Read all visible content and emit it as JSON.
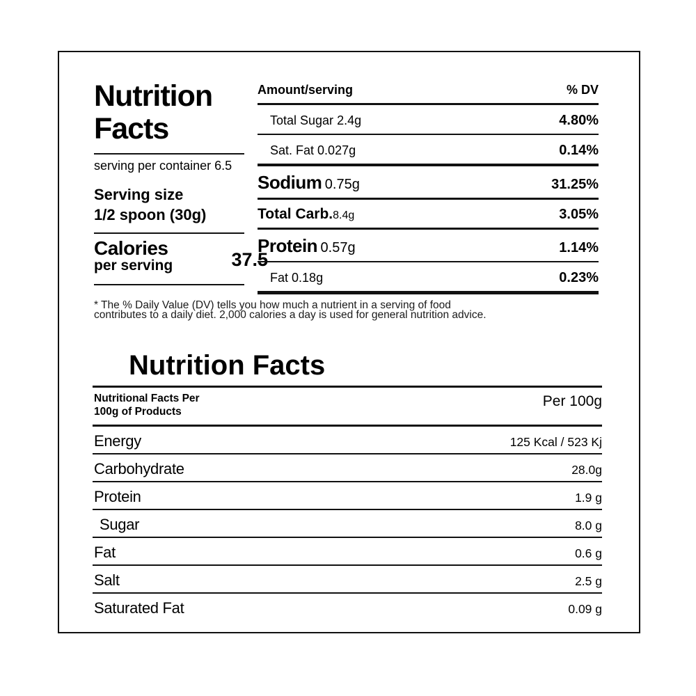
{
  "top": {
    "title_line1": "Nutrition",
    "title_line2": "Facts",
    "servings_per_container": "serving per container 6.5",
    "serving_size_label": "Serving size",
    "serving_size_value": "1/2 spoon (30g)",
    "calories_label": "Calories",
    "calories_sub": "per serving",
    "calories_value": "37.5",
    "table": {
      "col_amount": "Amount/serving",
      "col_dv": "% DV",
      "rows": [
        {
          "name": "Total Sugar",
          "amount": "2.4g",
          "dv": "4.80%"
        },
        {
          "name": "Sat. Fat",
          "amount": "0.027g",
          "dv": "0.14%"
        },
        {
          "name": "Sodium",
          "amount": "0.75g",
          "dv": "31.25%"
        },
        {
          "name": "Total Carb.",
          "amount": "8.4g",
          "dv": "3.05%"
        },
        {
          "name": "Protein",
          "amount": "0.57g",
          "dv": "1.14%"
        },
        {
          "name": "Fat",
          "amount": "0.18g",
          "dv": "0.23%"
        }
      ]
    },
    "footnote_line1": "* The % Daily Value (DV) tells you how much a nutrient in a serving of food",
    "footnote_line2": "contributes to a daily diet. 2,000 calories a day is used for general nutrition advice."
  },
  "bottom": {
    "title": "Nutrition Facts",
    "header_left_line1": "Nutritional Facts Per",
    "header_left_line2": "100g of Products",
    "header_right": "Per 100g",
    "rows": [
      {
        "label": "Energy",
        "value": "125 Kcal / 523 Kj"
      },
      {
        "label": "Carbohydrate",
        "value": "28.0g"
      },
      {
        "label": "Protein",
        "value": "1.9 g"
      },
      {
        "label": "Sugar",
        "value": "8.0 g"
      },
      {
        "label": "Fat",
        "value": "0.6 g"
      },
      {
        "label": "Salt",
        "value": "2.5 g"
      },
      {
        "label": "Saturated Fat",
        "value": "0.09 g"
      }
    ]
  },
  "colors": {
    "text": "#111111",
    "background": "#ffffff"
  }
}
